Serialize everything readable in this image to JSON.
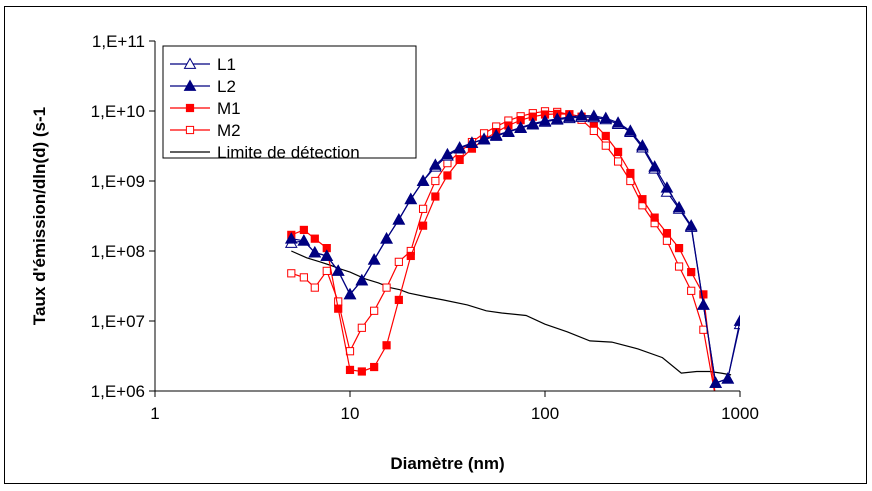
{
  "chart_data": {
    "type": "line",
    "title": "",
    "xlabel": "Diamètre (nm)",
    "ylabel": "Taux d'émission/dln(d) (s-1",
    "x_scale": "log",
    "y_scale": "log",
    "xlim": [
      1,
      1000
    ],
    "ylim": [
      1000000,
      100000000000
    ],
    "x_ticks": [
      "1",
      "10",
      "100",
      "1000"
    ],
    "y_ticks": [
      "1,E+06",
      "1,E+07",
      "1,E+08",
      "1,E+09",
      "1,E+10",
      "1,E+11"
    ],
    "grid": false,
    "legend_position": "top-left",
    "series": [
      {
        "name": "L1",
        "color": "#000080",
        "marker": "triangle-open",
        "line": true,
        "x": [
          5.0,
          5.8,
          6.6,
          7.6,
          8.7,
          10.0,
          11.5,
          13.3,
          15.4,
          17.8,
          20.5,
          23.7,
          27.4,
          31.6,
          36.5,
          42.2,
          48.7,
          56.2,
          64.9,
          75.0,
          86.6,
          100,
          115.5,
          133.4,
          154,
          178,
          205,
          237,
          274,
          316,
          365,
          422,
          487,
          562,
          649,
          750,
          866,
          1000
        ],
        "y": [
          130000000,
          140000000,
          95000000,
          85000000,
          52000000,
          24000000,
          38000000,
          75000000,
          150000000,
          280000000,
          550000000,
          1000000000,
          1600000000,
          2300000000,
          2900000000,
          3500000000,
          3900000000,
          4400000000,
          5000000000,
          5700000000,
          6400000000,
          7000000000,
          7500000000,
          7900000000,
          8200000000,
          8100000000,
          7600000000,
          6500000000,
          5000000000,
          3000000000,
          1500000000,
          700000000,
          400000000,
          220000000,
          17000000,
          1300000,
          1500000,
          9000000
        ]
      },
      {
        "name": "L2",
        "color": "#000080",
        "marker": "triangle-filled",
        "line": true,
        "x": [
          5.0,
          5.8,
          6.6,
          7.6,
          8.7,
          10.0,
          11.5,
          13.3,
          15.4,
          17.8,
          20.5,
          23.7,
          27.4,
          31.6,
          36.5,
          42.2,
          48.7,
          56.2,
          64.9,
          75.0,
          86.6,
          100,
          115.5,
          133.4,
          154,
          178,
          205,
          237,
          274,
          316,
          365,
          422,
          487,
          562,
          649,
          750,
          866,
          1000
        ],
        "y": [
          150000000,
          140000000,
          95000000,
          85000000,
          52000000,
          24000000,
          38000000,
          75000000,
          150000000,
          280000000,
          550000000,
          1000000000,
          1700000000,
          2400000000,
          3000000000,
          3500000000,
          4000000000,
          4500000000,
          5100000000,
          5800000000,
          6600000000,
          7200000000,
          7700000000,
          8200000000,
          8600000000,
          8500000000,
          7900000000,
          6800000000,
          5200000000,
          3200000000,
          1600000000,
          800000000,
          420000000,
          230000000,
          17000000,
          1300000,
          1500000,
          10000000
        ]
      },
      {
        "name": "M1",
        "color": "#ff0000",
        "marker": "square-filled",
        "line": true,
        "x": [
          5.0,
          5.8,
          6.6,
          7.6,
          8.7,
          10.0,
          11.5,
          13.3,
          15.4,
          17.8,
          20.5,
          23.7,
          27.4,
          31.6,
          36.5,
          42.2,
          48.7,
          56.2,
          64.9,
          75.0,
          86.6,
          100,
          115.5,
          133.4,
          154,
          178,
          205,
          237,
          274,
          316,
          365,
          422,
          487,
          562,
          649,
          750
        ],
        "y": [
          170000000,
          200000000,
          150000000,
          110000000,
          15000000,
          2000000,
          1900000,
          2200000,
          4500000,
          20000000,
          85000000,
          230000000,
          600000000,
          1200000000,
          2000000000,
          2900000000,
          3900000000,
          5000000000,
          6200000000,
          7400000000,
          8300000000,
          8900000000,
          9100000000,
          9000000000,
          8300000000,
          6700000000,
          4400000000,
          2600000000,
          1300000000,
          550000000,
          300000000,
          180000000,
          110000000,
          50000000,
          24000000,
          800000
        ]
      },
      {
        "name": "M2",
        "color": "#ff0000",
        "marker": "square-open",
        "line": true,
        "x": [
          5.0,
          5.8,
          6.6,
          7.6,
          8.7,
          10.0,
          11.5,
          13.3,
          15.4,
          17.8,
          20.5,
          23.7,
          27.4,
          31.6,
          36.5,
          42.2,
          48.7,
          56.2,
          64.9,
          75.0,
          86.6,
          100,
          115.5,
          133.4,
          154,
          178,
          205,
          237,
          274,
          316,
          365,
          422,
          487,
          562,
          649,
          750
        ],
        "y": [
          48000000,
          42000000,
          30000000,
          52000000,
          19000000,
          3700000,
          8000000,
          14000000,
          30000000,
          70000000,
          100000000,
          400000000,
          1000000000,
          1800000000,
          2600000000,
          3600000000,
          4800000000,
          6000000000,
          7300000000,
          8400000000,
          9300000000,
          9900000000,
          9700000000,
          8900000000,
          7500000000,
          5200000000,
          3200000000,
          1900000000,
          1000000000,
          450000000,
          250000000,
          140000000,
          60000000,
          27000000,
          7500000,
          800000
        ]
      },
      {
        "name": "Limite de détection",
        "color": "#000000",
        "marker": "none",
        "line": true,
        "x": [
          5.0,
          6.0,
          7.0,
          8.0,
          9.0,
          10.0,
          12.0,
          14.0,
          16.0,
          18.0,
          20.0,
          25.0,
          30.0,
          40.0,
          50.0,
          60.0,
          80.0,
          100,
          130,
          170,
          220,
          300,
          400,
          500,
          600,
          700,
          800,
          900
        ],
        "y": [
          100000000,
          80000000,
          70000000,
          62000000,
          55000000,
          50000000,
          40000000,
          35000000,
          30000000,
          28000000,
          25000000,
          22000000,
          20000000,
          17000000,
          14000000,
          13000000,
          12000000,
          9000000,
          7000000,
          5200000,
          5000000,
          4000000,
          3000000,
          1800000,
          1900000,
          1900000,
          1800000,
          1700000
        ]
      }
    ]
  }
}
